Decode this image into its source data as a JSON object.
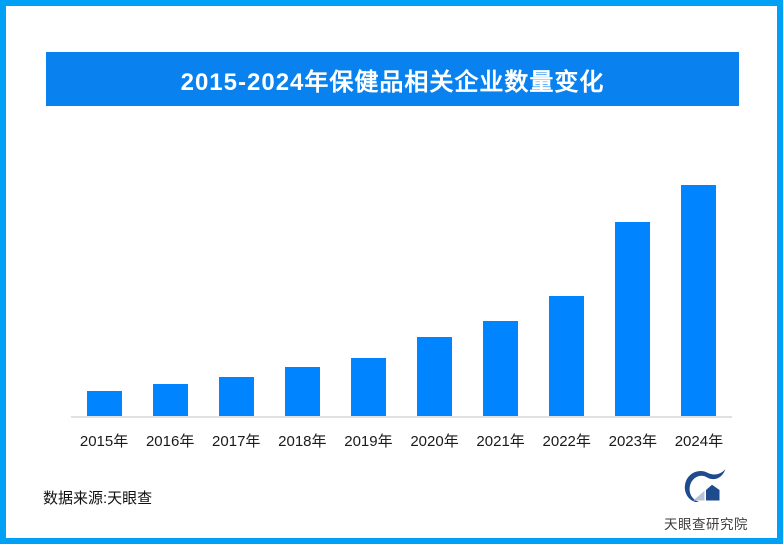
{
  "page": {
    "background": "#ffffff",
    "frame_color": "#00a0f6"
  },
  "header": {
    "title": "2015-2024年保健品相关企业数量变化",
    "banner_color": "#0982f0",
    "title_color": "#ffffff"
  },
  "chart_data": {
    "type": "bar",
    "title": "2015-2024年保健品相关企业数量变化",
    "categories": [
      "2015年",
      "2016年",
      "2017年",
      "2018年",
      "2019年",
      "2020年",
      "2021年",
      "2022年",
      "2023年",
      "2024年"
    ],
    "values": [
      11,
      14,
      17,
      21,
      25,
      34,
      41,
      52,
      84,
      100
    ],
    "value_note": "relative scale (2024=100) estimated from bar heights; chart shows no numeric labels or y-axis",
    "xlabel": "",
    "ylabel": "",
    "ylim": [
      0,
      100
    ],
    "grid": false,
    "legend": null,
    "bar_color": "#0084ff",
    "axis_color": "#e1e1e1"
  },
  "footer": {
    "source_label": "数据来源:天眼查",
    "logo_text": "天眼查研究院",
    "logo_color": "#1d4b8e",
    "logo_accent_color": "#b8c4d6"
  }
}
